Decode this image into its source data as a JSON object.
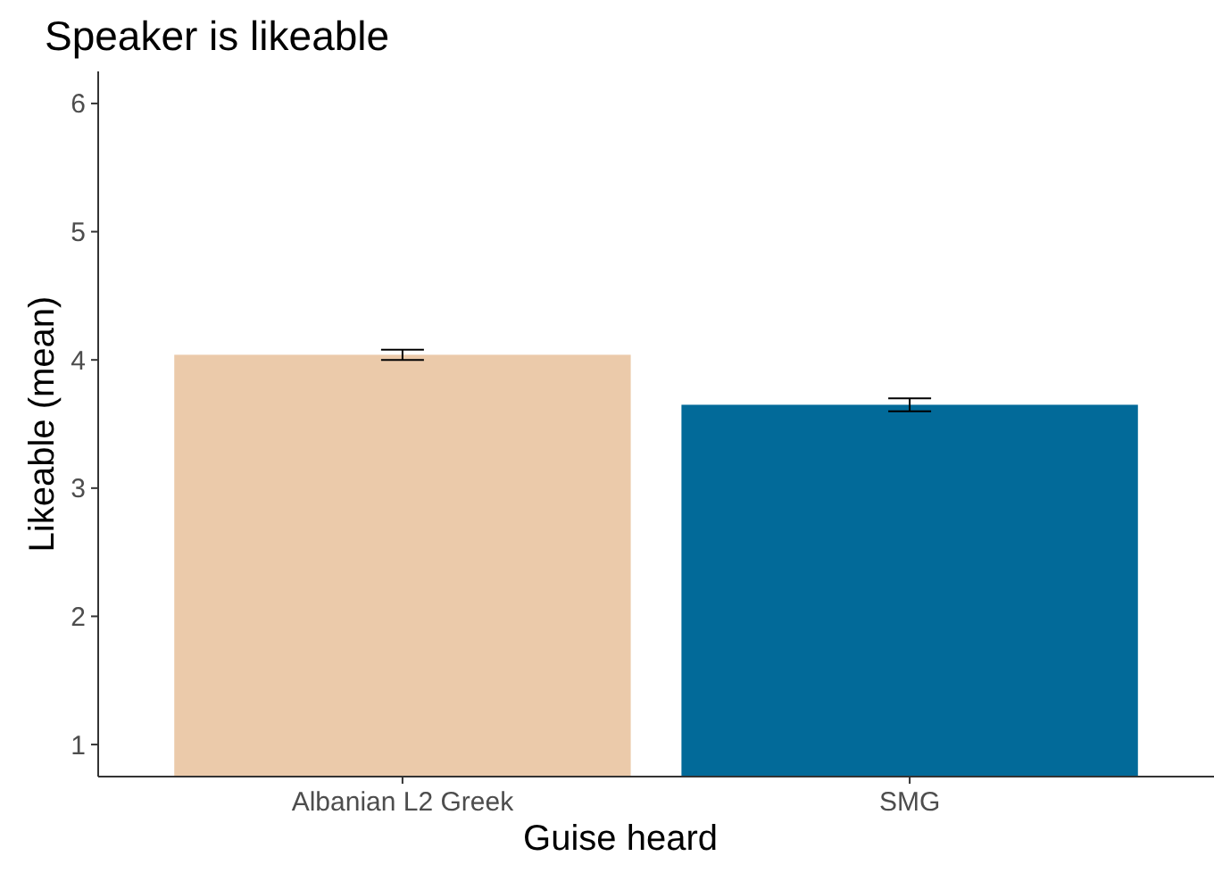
{
  "chart_data": {
    "type": "bar",
    "title": "Speaker is likeable",
    "xlabel": "Guise heard",
    "ylabel": "Likeable (mean)",
    "categories": [
      "Albanian L2 Greek",
      "SMG"
    ],
    "values": [
      4.04,
      3.65
    ],
    "colors": [
      "#ebcaaa",
      "#026a99"
    ],
    "errors": [
      0.04,
      0.05
    ],
    "ylim": [
      0.75,
      6.25
    ],
    "yticks": [
      1,
      2,
      3,
      4,
      5,
      6
    ],
    "grid": false
  }
}
